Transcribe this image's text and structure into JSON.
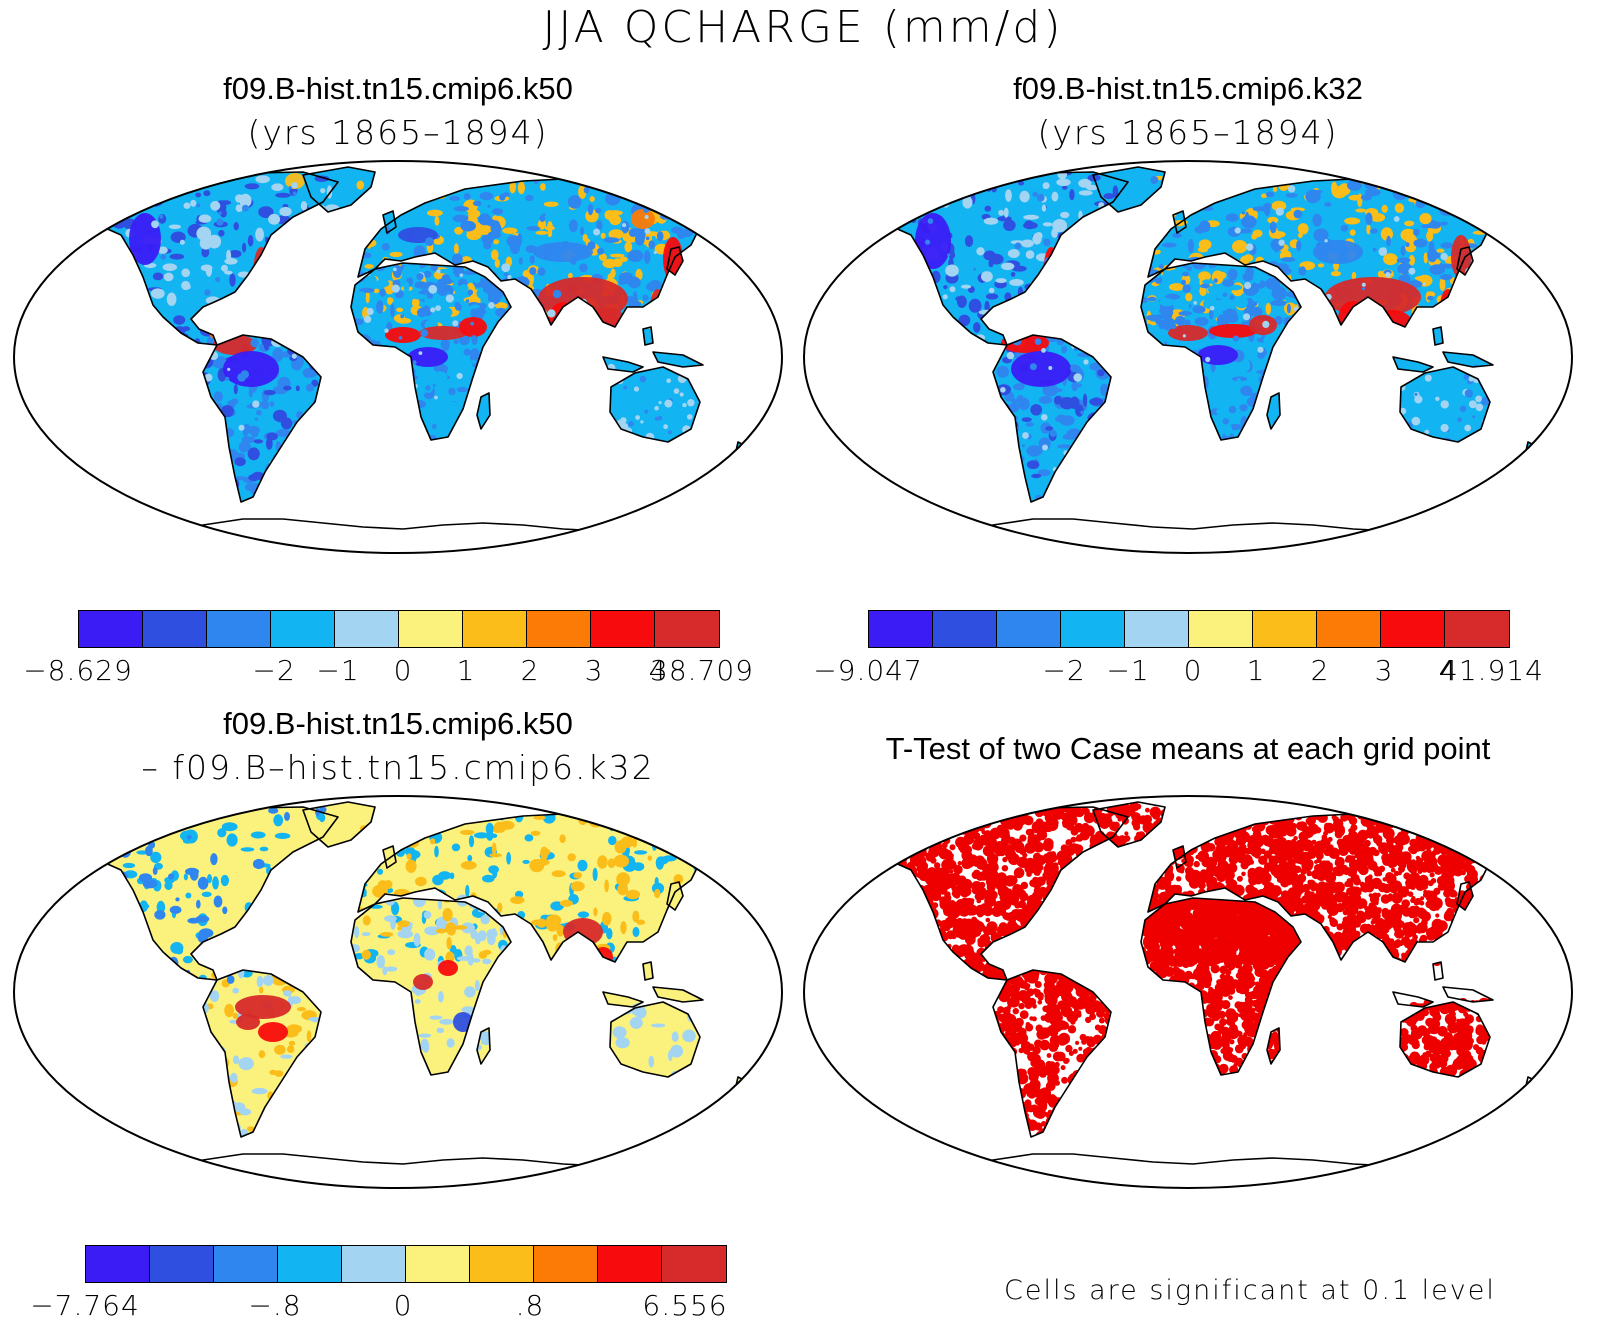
{
  "title": "JJA QCHARGE (mm/d)",
  "palette": [
    "#3b1cf5",
    "#2f4fe0",
    "#2f86ef",
    "#12b4f2",
    "#a3d4f1",
    "#fbf27d",
    "#fbbd1a",
    "#fb7b06",
    "#f80b0c",
    "#d72a2a"
  ],
  "significance_color": "#ee0000",
  "panels": [
    {
      "title_line1": "f09.B-hist.tn15.cmip6.k50",
      "title_line2": "(yrs 1865–1894)",
      "colorbar_labels": [
        "−8.629",
        "−2",
        "−1",
        "0",
        "1",
        "2",
        "3",
        "4",
        "38.709"
      ]
    },
    {
      "title_line1": "f09.B-hist.tn15.cmip6.k32",
      "title_line2": "(yrs 1865–1894)",
      "colorbar_labels": [
        "−9.047",
        "−2",
        "−1",
        "0",
        "1",
        "2",
        "3",
        "4",
        "41.914"
      ]
    },
    {
      "title_line1": "f09.B-hist.tn15.cmip6.k50",
      "title_line2": "– f09.B–hist.tn15.cmip6.k32",
      "colorbar_labels": [
        "−7.764",
        "−.8",
        "0",
        ".8",
        "6.556"
      ]
    },
    {
      "title_line1": "T-Test of two Case means at each grid point",
      "footnote": "Cells are significant at 0.1 level"
    }
  ]
}
